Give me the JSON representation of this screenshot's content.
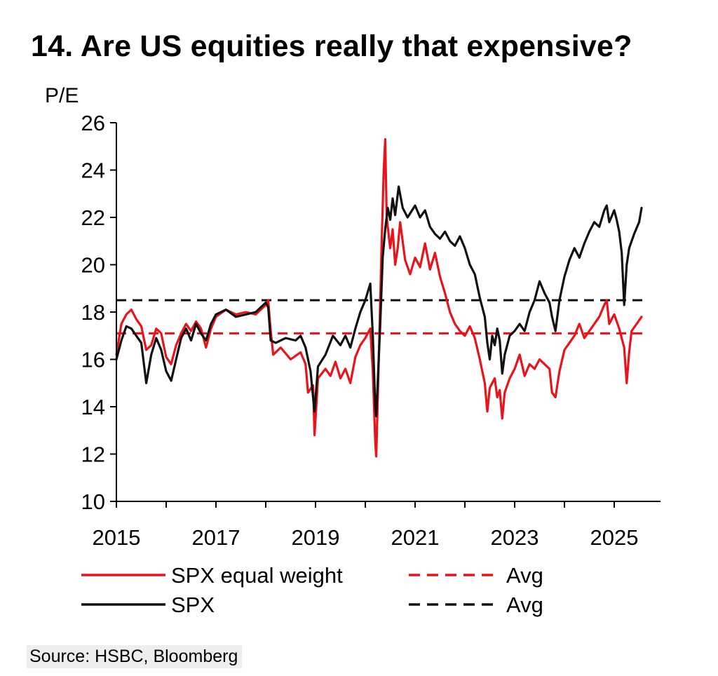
{
  "title": "14. Are US equities really that expensive?",
  "source": "Source: HSBC, Bloomberg",
  "colors": {
    "spx_equal_weight": "#e8141b",
    "spx": "#111111"
  },
  "chart_data": {
    "type": "line",
    "y_unit_label": "P/E",
    "xlim": [
      2015,
      2025.75
    ],
    "ylim": [
      10,
      26
    ],
    "x_ticks": [
      "2015",
      "2017",
      "2019",
      "2021",
      "2023",
      "2025"
    ],
    "y_ticks": [
      "26",
      "24",
      "22",
      "20",
      "18",
      "16",
      "14",
      "12",
      "10"
    ],
    "grid": false,
    "legend_position": "bottom",
    "legend": [
      {
        "label": "SPX equal weight",
        "style": "solid",
        "color": "#e8141b"
      },
      {
        "label": "Avg",
        "style": "dashed",
        "color": "#e8141b"
      },
      {
        "label": "SPX",
        "style": "solid",
        "color": "#111111"
      },
      {
        "label": "Avg",
        "style": "dashed",
        "color": "#111111"
      }
    ],
    "series": [
      {
        "name": "SPX equal weight",
        "style": "solid",
        "points": [
          [
            2015.0,
            16.2
          ],
          [
            2015.1,
            17.5
          ],
          [
            2015.2,
            17.9
          ],
          [
            2015.3,
            18.1
          ],
          [
            2015.4,
            17.7
          ],
          [
            2015.5,
            17.4
          ],
          [
            2015.6,
            16.4
          ],
          [
            2015.7,
            16.6
          ],
          [
            2015.8,
            17.3
          ],
          [
            2015.9,
            17.1
          ],
          [
            2016.0,
            16.1
          ],
          [
            2016.1,
            15.8
          ],
          [
            2016.2,
            16.6
          ],
          [
            2016.3,
            17.1
          ],
          [
            2016.4,
            17.5
          ],
          [
            2016.5,
            17.2
          ],
          [
            2016.6,
            17.6
          ],
          [
            2016.7,
            17.3
          ],
          [
            2016.8,
            16.5
          ],
          [
            2016.9,
            17.3
          ],
          [
            2017.0,
            17.8
          ],
          [
            2017.2,
            18.1
          ],
          [
            2017.4,
            17.9
          ],
          [
            2017.6,
            18.0
          ],
          [
            2017.8,
            17.9
          ],
          [
            2018.0,
            18.3
          ],
          [
            2018.05,
            18.5
          ],
          [
            2018.1,
            17.2
          ],
          [
            2018.15,
            16.2
          ],
          [
            2018.3,
            16.5
          ],
          [
            2018.5,
            16.0
          ],
          [
            2018.7,
            16.3
          ],
          [
            2018.8,
            15.8
          ],
          [
            2018.85,
            14.6
          ],
          [
            2018.95,
            14.9
          ],
          [
            2018.98,
            12.8
          ],
          [
            2019.05,
            15.2
          ],
          [
            2019.2,
            15.6
          ],
          [
            2019.3,
            15.3
          ],
          [
            2019.4,
            15.9
          ],
          [
            2019.5,
            15.2
          ],
          [
            2019.6,
            15.6
          ],
          [
            2019.7,
            15.0
          ],
          [
            2019.8,
            16.1
          ],
          [
            2019.9,
            16.6
          ],
          [
            2020.0,
            16.9
          ],
          [
            2020.1,
            17.3
          ],
          [
            2020.15,
            15.5
          ],
          [
            2020.2,
            12.5
          ],
          [
            2020.22,
            11.9
          ],
          [
            2020.27,
            16.0
          ],
          [
            2020.33,
            21.0
          ],
          [
            2020.37,
            24.0
          ],
          [
            2020.4,
            25.3
          ],
          [
            2020.43,
            22.0
          ],
          [
            2020.5,
            20.7
          ],
          [
            2020.55,
            21.5
          ],
          [
            2020.6,
            20.0
          ],
          [
            2020.65,
            20.7
          ],
          [
            2020.7,
            21.8
          ],
          [
            2020.8,
            20.2
          ],
          [
            2020.9,
            19.6
          ],
          [
            2021.0,
            20.3
          ],
          [
            2021.1,
            19.9
          ],
          [
            2021.2,
            20.9
          ],
          [
            2021.3,
            19.8
          ],
          [
            2021.4,
            20.5
          ],
          [
            2021.5,
            19.5
          ],
          [
            2021.6,
            18.8
          ],
          [
            2021.7,
            18.0
          ],
          [
            2021.8,
            17.5
          ],
          [
            2021.9,
            17.2
          ],
          [
            2022.0,
            17.0
          ],
          [
            2022.1,
            17.4
          ],
          [
            2022.2,
            16.9
          ],
          [
            2022.3,
            16.0
          ],
          [
            2022.4,
            15.0
          ],
          [
            2022.45,
            13.8
          ],
          [
            2022.5,
            14.8
          ],
          [
            2022.6,
            15.2
          ],
          [
            2022.65,
            14.4
          ],
          [
            2022.7,
            14.7
          ],
          [
            2022.75,
            13.5
          ],
          [
            2022.8,
            14.6
          ],
          [
            2022.9,
            15.2
          ],
          [
            2023.0,
            15.6
          ],
          [
            2023.1,
            16.2
          ],
          [
            2023.2,
            15.3
          ],
          [
            2023.3,
            15.8
          ],
          [
            2023.4,
            15.6
          ],
          [
            2023.5,
            16.0
          ],
          [
            2023.6,
            15.8
          ],
          [
            2023.7,
            15.6
          ],
          [
            2023.75,
            14.6
          ],
          [
            2023.82,
            14.4
          ],
          [
            2023.9,
            15.5
          ],
          [
            2024.0,
            16.4
          ],
          [
            2024.1,
            16.7
          ],
          [
            2024.2,
            17.0
          ],
          [
            2024.3,
            17.5
          ],
          [
            2024.4,
            16.9
          ],
          [
            2024.5,
            17.2
          ],
          [
            2024.6,
            17.5
          ],
          [
            2024.7,
            17.8
          ],
          [
            2024.8,
            18.3
          ],
          [
            2024.85,
            18.5
          ],
          [
            2024.9,
            17.5
          ],
          [
            2025.0,
            17.9
          ],
          [
            2025.1,
            17.3
          ],
          [
            2025.2,
            16.5
          ],
          [
            2025.25,
            15.0
          ],
          [
            2025.3,
            16.3
          ],
          [
            2025.35,
            17.2
          ],
          [
            2025.45,
            17.5
          ],
          [
            2025.55,
            17.8
          ]
        ]
      },
      {
        "name": "SPX",
        "style": "solid",
        "points": [
          [
            2015.0,
            16.0
          ],
          [
            2015.1,
            16.8
          ],
          [
            2015.2,
            17.4
          ],
          [
            2015.3,
            17.3
          ],
          [
            2015.4,
            17.0
          ],
          [
            2015.5,
            16.7
          ],
          [
            2015.6,
            15.0
          ],
          [
            2015.7,
            16.2
          ],
          [
            2015.8,
            16.9
          ],
          [
            2015.9,
            16.4
          ],
          [
            2016.0,
            15.5
          ],
          [
            2016.1,
            15.1
          ],
          [
            2016.2,
            16.0
          ],
          [
            2016.3,
            16.9
          ],
          [
            2016.4,
            17.3
          ],
          [
            2016.5,
            16.8
          ],
          [
            2016.6,
            17.5
          ],
          [
            2016.7,
            17.1
          ],
          [
            2016.8,
            16.8
          ],
          [
            2016.9,
            17.5
          ],
          [
            2017.0,
            17.9
          ],
          [
            2017.2,
            18.1
          ],
          [
            2017.4,
            17.8
          ],
          [
            2017.6,
            17.9
          ],
          [
            2017.8,
            18.0
          ],
          [
            2018.0,
            18.4
          ],
          [
            2018.05,
            18.2
          ],
          [
            2018.1,
            16.8
          ],
          [
            2018.2,
            16.7
          ],
          [
            2018.4,
            16.9
          ],
          [
            2018.6,
            16.8
          ],
          [
            2018.7,
            17.0
          ],
          [
            2018.8,
            16.5
          ],
          [
            2018.9,
            15.5
          ],
          [
            2018.95,
            14.4
          ],
          [
            2018.98,
            13.8
          ],
          [
            2019.05,
            15.7
          ],
          [
            2019.2,
            16.2
          ],
          [
            2019.35,
            17.0
          ],
          [
            2019.5,
            16.6
          ],
          [
            2019.6,
            17.0
          ],
          [
            2019.7,
            16.5
          ],
          [
            2019.8,
            17.3
          ],
          [
            2019.9,
            18.0
          ],
          [
            2020.0,
            18.5
          ],
          [
            2020.1,
            19.2
          ],
          [
            2020.15,
            17.0
          ],
          [
            2020.2,
            14.0
          ],
          [
            2020.22,
            13.6
          ],
          [
            2020.3,
            17.5
          ],
          [
            2020.35,
            20.3
          ],
          [
            2020.4,
            21.5
          ],
          [
            2020.45,
            22.4
          ],
          [
            2020.5,
            21.9
          ],
          [
            2020.55,
            22.8
          ],
          [
            2020.6,
            22.1
          ],
          [
            2020.67,
            23.3
          ],
          [
            2020.75,
            22.4
          ],
          [
            2020.85,
            22.0
          ],
          [
            2021.0,
            22.5
          ],
          [
            2021.1,
            22.0
          ],
          [
            2021.2,
            22.3
          ],
          [
            2021.3,
            21.6
          ],
          [
            2021.4,
            21.3
          ],
          [
            2021.5,
            21.1
          ],
          [
            2021.6,
            21.4
          ],
          [
            2021.7,
            21.0
          ],
          [
            2021.8,
            20.8
          ],
          [
            2021.9,
            21.2
          ],
          [
            2022.0,
            20.7
          ],
          [
            2022.1,
            20.0
          ],
          [
            2022.2,
            19.6
          ],
          [
            2022.3,
            18.6
          ],
          [
            2022.4,
            17.8
          ],
          [
            2022.45,
            16.7
          ],
          [
            2022.5,
            16.0
          ],
          [
            2022.55,
            17.0
          ],
          [
            2022.6,
            16.6
          ],
          [
            2022.65,
            17.3
          ],
          [
            2022.7,
            16.8
          ],
          [
            2022.75,
            15.4
          ],
          [
            2022.8,
            16.2
          ],
          [
            2022.9,
            17.0
          ],
          [
            2023.0,
            17.2
          ],
          [
            2023.1,
            17.5
          ],
          [
            2023.2,
            17.2
          ],
          [
            2023.3,
            18.0
          ],
          [
            2023.4,
            18.5
          ],
          [
            2023.5,
            19.3
          ],
          [
            2023.6,
            18.8
          ],
          [
            2023.7,
            18.4
          ],
          [
            2023.75,
            17.8
          ],
          [
            2023.82,
            17.2
          ],
          [
            2023.9,
            18.5
          ],
          [
            2024.0,
            19.5
          ],
          [
            2024.1,
            20.2
          ],
          [
            2024.2,
            20.7
          ],
          [
            2024.3,
            20.3
          ],
          [
            2024.4,
            20.9
          ],
          [
            2024.5,
            21.4
          ],
          [
            2024.6,
            21.8
          ],
          [
            2024.7,
            21.6
          ],
          [
            2024.8,
            22.3
          ],
          [
            2024.85,
            22.5
          ],
          [
            2024.9,
            21.8
          ],
          [
            2025.0,
            22.3
          ],
          [
            2025.05,
            21.9
          ],
          [
            2025.1,
            21.4
          ],
          [
            2025.15,
            20.5
          ],
          [
            2025.2,
            18.3
          ],
          [
            2025.25,
            20.0
          ],
          [
            2025.3,
            20.7
          ],
          [
            2025.4,
            21.3
          ],
          [
            2025.5,
            21.8
          ],
          [
            2025.55,
            22.4
          ]
        ]
      },
      {
        "name": "Avg",
        "style": "dashed",
        "color": "#e8141b",
        "value": 17.1
      },
      {
        "name": "Avg",
        "style": "dashed",
        "color": "#111111",
        "value": 18.5
      }
    ]
  }
}
